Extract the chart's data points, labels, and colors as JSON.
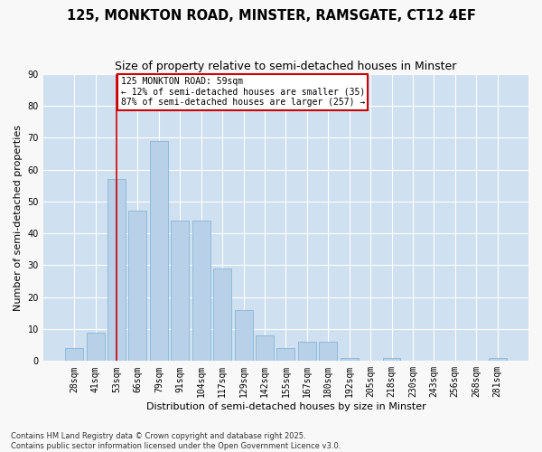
{
  "title": "125, MONKTON ROAD, MINSTER, RAMSGATE, CT12 4EF",
  "subtitle": "Size of property relative to semi-detached houses in Minster",
  "xlabel": "Distribution of semi-detached houses by size in Minster",
  "ylabel": "Number of semi-detached properties",
  "categories": [
    "28sqm",
    "41sqm",
    "53sqm",
    "66sqm",
    "79sqm",
    "91sqm",
    "104sqm",
    "117sqm",
    "129sqm",
    "142sqm",
    "155sqm",
    "167sqm",
    "180sqm",
    "192sqm",
    "205sqm",
    "218sqm",
    "230sqm",
    "243sqm",
    "256sqm",
    "268sqm",
    "281sqm"
  ],
  "values": [
    4,
    9,
    57,
    47,
    69,
    44,
    44,
    29,
    16,
    8,
    4,
    6,
    6,
    1,
    0,
    1,
    0,
    0,
    0,
    0,
    1
  ],
  "bar_color": "#b8d0e8",
  "bar_edge_color": "#7aafd4",
  "bar_width": 0.85,
  "vline_x": 2,
  "vline_color": "#cc0000",
  "annotation_text": "125 MONKTON ROAD: 59sqm\n← 12% of semi-detached houses are smaller (35)\n87% of semi-detached houses are larger (257) →",
  "annotation_box_color": "#ffffff",
  "annotation_box_edge_color": "#cc0000",
  "ylim": [
    0,
    90
  ],
  "yticks": [
    0,
    10,
    20,
    30,
    40,
    50,
    60,
    70,
    80,
    90
  ],
  "background_color": "#cfe0f0",
  "grid_color": "#ffffff",
  "title_fontsize": 10.5,
  "subtitle_fontsize": 9,
  "axis_label_fontsize": 8,
  "tick_fontsize": 7,
  "footnote": "Contains HM Land Registry data © Crown copyright and database right 2025.\nContains public sector information licensed under the Open Government Licence v3.0.",
  "footnote_fontsize": 6,
  "fig_bg_color": "#f8f8f8"
}
